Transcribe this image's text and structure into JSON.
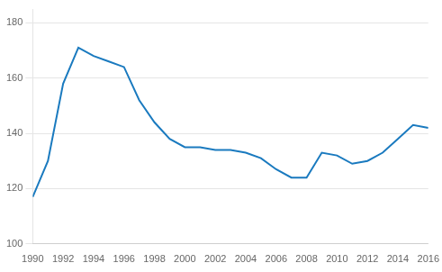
{
  "chart_data": {
    "type": "line",
    "x": [
      1990,
      1991,
      1992,
      1993,
      1994,
      1995,
      1996,
      1997,
      1998,
      1999,
      2000,
      2001,
      2002,
      2003,
      2004,
      2005,
      2006,
      2007,
      2008,
      2009,
      2010,
      2011,
      2012,
      2013,
      2014,
      2015,
      2016
    ],
    "values": [
      117,
      130,
      158,
      171,
      168,
      166,
      164,
      152,
      144,
      138,
      135,
      135,
      134,
      134,
      133,
      131,
      127,
      124,
      124,
      133,
      132,
      129,
      130,
      133,
      138,
      143,
      142
    ],
    "color": "#1a7abf",
    "xlim": [
      1990,
      2016
    ],
    "xticks": [
      1990,
      1992,
      1994,
      1996,
      1998,
      2000,
      2002,
      2004,
      2006,
      2008,
      2010,
      2012,
      2014,
      2016
    ],
    "ylim": [
      100,
      185
    ],
    "yticks": [
      100,
      120,
      140,
      160,
      180
    ],
    "grid": "y"
  }
}
